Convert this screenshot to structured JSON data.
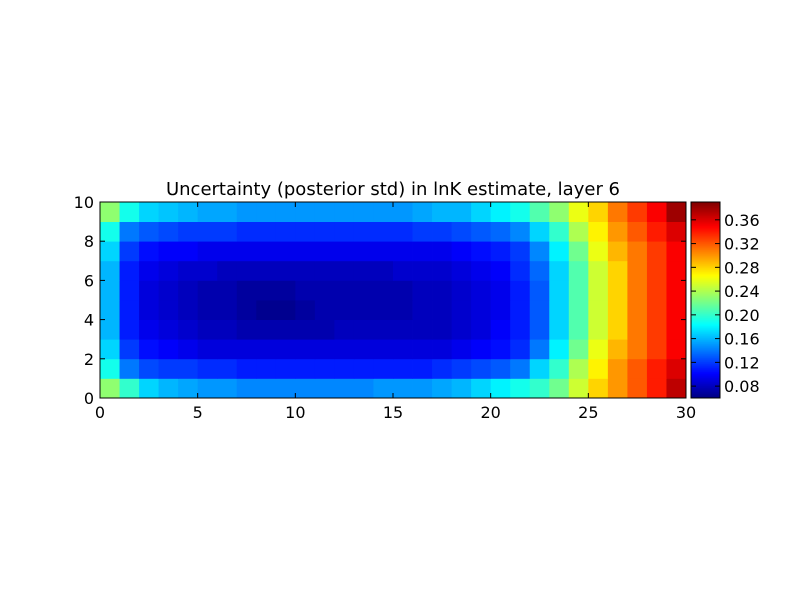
{
  "chart_data": {
    "type": "heatmap",
    "title": "Uncertainty (posterior std) in lnK estimate, layer 6",
    "xlabel": "",
    "ylabel": "",
    "xlim": [
      0,
      30
    ],
    "ylim": [
      0,
      10
    ],
    "x_ticks": [
      0,
      5,
      10,
      15,
      20,
      25,
      30
    ],
    "x_tick_labels": [
      "0",
      "5",
      "10",
      "15",
      "20",
      "25",
      "30"
    ],
    "y_ticks": [
      0,
      2,
      4,
      6,
      8,
      10
    ],
    "y_tick_labels": [
      "0",
      "2",
      "4",
      "6",
      "8",
      "10"
    ],
    "colormap": "jet",
    "colorbar": {
      "vmin": 0.06,
      "vmax": 0.39,
      "ticks": [
        0.08,
        0.12,
        0.16,
        0.2,
        0.24,
        0.28,
        0.32,
        0.36
      ],
      "tick_labels": [
        "0.08",
        "0.12",
        "0.16",
        "0.20",
        "0.24",
        "0.28",
        "0.32",
        "0.36"
      ]
    },
    "grid": false,
    "rows_bottom_to_top": [
      [
        0.23,
        0.2,
        0.17,
        0.16,
        0.155,
        0.15,
        0.15,
        0.145,
        0.145,
        0.145,
        0.145,
        0.145,
        0.145,
        0.145,
        0.15,
        0.15,
        0.15,
        0.155,
        0.16,
        0.17,
        0.18,
        0.19,
        0.2,
        0.22,
        0.25,
        0.28,
        0.3,
        0.32,
        0.34,
        0.37
      ],
      [
        0.19,
        0.14,
        0.125,
        0.12,
        0.12,
        0.115,
        0.115,
        0.11,
        0.11,
        0.11,
        0.11,
        0.11,
        0.11,
        0.11,
        0.11,
        0.11,
        0.11,
        0.115,
        0.12,
        0.125,
        0.13,
        0.14,
        0.17,
        0.2,
        0.24,
        0.27,
        0.3,
        0.32,
        0.34,
        0.36
      ],
      [
        0.17,
        0.12,
        0.105,
        0.1,
        0.095,
        0.09,
        0.09,
        0.09,
        0.09,
        0.09,
        0.09,
        0.09,
        0.09,
        0.09,
        0.09,
        0.09,
        0.09,
        0.09,
        0.095,
        0.1,
        0.105,
        0.115,
        0.14,
        0.18,
        0.22,
        0.26,
        0.29,
        0.31,
        0.33,
        0.35
      ],
      [
        0.16,
        0.11,
        0.095,
        0.09,
        0.085,
        0.08,
        0.08,
        0.075,
        0.075,
        0.075,
        0.075,
        0.075,
        0.08,
        0.08,
        0.08,
        0.08,
        0.08,
        0.08,
        0.085,
        0.09,
        0.1,
        0.11,
        0.13,
        0.17,
        0.21,
        0.25,
        0.28,
        0.31,
        0.33,
        0.35
      ],
      [
        0.16,
        0.11,
        0.09,
        0.085,
        0.08,
        0.075,
        0.075,
        0.07,
        0.065,
        0.065,
        0.07,
        0.075,
        0.075,
        0.075,
        0.075,
        0.075,
        0.08,
        0.08,
        0.085,
        0.09,
        0.095,
        0.11,
        0.13,
        0.17,
        0.21,
        0.25,
        0.28,
        0.31,
        0.33,
        0.35
      ],
      [
        0.16,
        0.11,
        0.09,
        0.085,
        0.08,
        0.075,
        0.075,
        0.07,
        0.07,
        0.07,
        0.075,
        0.075,
        0.075,
        0.075,
        0.075,
        0.075,
        0.08,
        0.08,
        0.085,
        0.09,
        0.095,
        0.11,
        0.13,
        0.17,
        0.21,
        0.25,
        0.28,
        0.31,
        0.33,
        0.35
      ],
      [
        0.16,
        0.11,
        0.095,
        0.09,
        0.085,
        0.085,
        0.08,
        0.08,
        0.08,
        0.08,
        0.08,
        0.08,
        0.08,
        0.08,
        0.08,
        0.085,
        0.085,
        0.085,
        0.09,
        0.095,
        0.1,
        0.115,
        0.135,
        0.17,
        0.21,
        0.25,
        0.28,
        0.31,
        0.33,
        0.35
      ],
      [
        0.17,
        0.12,
        0.105,
        0.1,
        0.1,
        0.095,
        0.095,
        0.095,
        0.095,
        0.095,
        0.095,
        0.095,
        0.095,
        0.095,
        0.095,
        0.095,
        0.095,
        0.095,
        0.1,
        0.105,
        0.11,
        0.12,
        0.145,
        0.18,
        0.22,
        0.26,
        0.29,
        0.31,
        0.33,
        0.35
      ],
      [
        0.19,
        0.14,
        0.13,
        0.125,
        0.12,
        0.12,
        0.12,
        0.115,
        0.115,
        0.115,
        0.115,
        0.115,
        0.115,
        0.115,
        0.115,
        0.115,
        0.12,
        0.12,
        0.125,
        0.13,
        0.135,
        0.145,
        0.17,
        0.2,
        0.24,
        0.27,
        0.3,
        0.32,
        0.34,
        0.36
      ],
      [
        0.23,
        0.19,
        0.17,
        0.165,
        0.16,
        0.155,
        0.155,
        0.15,
        0.15,
        0.15,
        0.15,
        0.15,
        0.15,
        0.15,
        0.15,
        0.15,
        0.155,
        0.16,
        0.16,
        0.17,
        0.18,
        0.19,
        0.21,
        0.23,
        0.26,
        0.28,
        0.31,
        0.33,
        0.35,
        0.38
      ]
    ]
  }
}
